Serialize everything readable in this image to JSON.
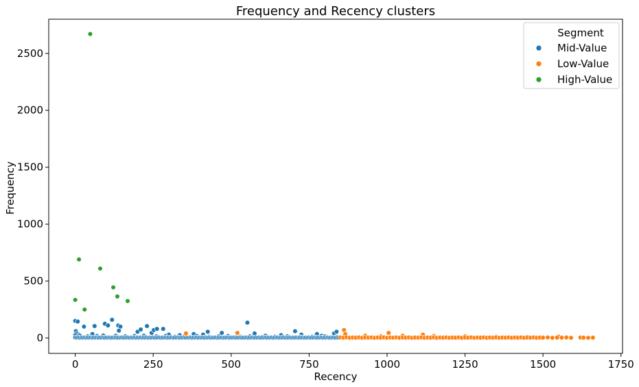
{
  "chart_data": {
    "type": "scatter",
    "title": "Frequency and Recency clusters",
    "xlabel": "Recency",
    "ylabel": "Frequency",
    "xlim": [
      -85,
      1755
    ],
    "ylim": [
      -135,
      2800
    ],
    "xticks": [
      0,
      250,
      500,
      750,
      1000,
      1250,
      1500,
      1750
    ],
    "yticks": [
      0,
      500,
      1000,
      1500,
      2000,
      2500
    ],
    "grid": false,
    "legend": {
      "title": "Segment",
      "position": "top-right"
    },
    "series": [
      {
        "name": "Mid-Value",
        "color": "#1f77b4",
        "points": [
          [
            0,
            150
          ],
          [
            8,
            145
          ],
          [
            2,
            60
          ],
          [
            5,
            40
          ],
          [
            12,
            30
          ],
          [
            28,
            100
          ],
          [
            55,
            35
          ],
          [
            62,
            105
          ],
          [
            95,
            125
          ],
          [
            105,
            110
          ],
          [
            118,
            160
          ],
          [
            138,
            110
          ],
          [
            145,
            100
          ],
          [
            140,
            65
          ],
          [
            200,
            55
          ],
          [
            210,
            75
          ],
          [
            230,
            105
          ],
          [
            245,
            45
          ],
          [
            252,
            70
          ],
          [
            262,
            80
          ],
          [
            282,
            80
          ],
          [
            300,
            30
          ],
          [
            335,
            25
          ],
          [
            380,
            35
          ],
          [
            410,
            30
          ],
          [
            425,
            55
          ],
          [
            470,
            45
          ],
          [
            520,
            25
          ],
          [
            552,
            135
          ],
          [
            575,
            40
          ],
          [
            610,
            20
          ],
          [
            660,
            25
          ],
          [
            705,
            60
          ],
          [
            725,
            30
          ],
          [
            775,
            35
          ],
          [
            790,
            20
          ],
          [
            830,
            40
          ],
          [
            838,
            55
          ],
          [
            0,
            25
          ],
          [
            15,
            20
          ],
          [
            40,
            15
          ],
          [
            70,
            18
          ],
          [
            90,
            22
          ],
          [
            130,
            20
          ],
          [
            160,
            15
          ],
          [
            190,
            18
          ],
          [
            220,
            20
          ],
          [
            260,
            15
          ],
          [
            290,
            18
          ],
          [
            320,
            12
          ],
          [
            350,
            15
          ],
          [
            390,
            18
          ],
          [
            430,
            12
          ],
          [
            460,
            15
          ],
          [
            490,
            18
          ],
          [
            530,
            12
          ],
          [
            560,
            15
          ],
          [
            600,
            10
          ],
          [
            640,
            12
          ],
          [
            680,
            15
          ],
          [
            720,
            10
          ],
          [
            760,
            12
          ],
          [
            800,
            15
          ],
          [
            840,
            10
          ],
          [
            0,
            5
          ],
          [
            5,
            3
          ],
          [
            10,
            6
          ],
          [
            15,
            2
          ],
          [
            20,
            4
          ],
          [
            25,
            3
          ],
          [
            30,
            5
          ],
          [
            35,
            2
          ],
          [
            40,
            4
          ],
          [
            45,
            3
          ],
          [
            50,
            5
          ],
          [
            55,
            2
          ],
          [
            60,
            4
          ],
          [
            65,
            3
          ],
          [
            70,
            5
          ],
          [
            75,
            2
          ],
          [
            80,
            4
          ],
          [
            85,
            3
          ],
          [
            90,
            5
          ],
          [
            95,
            2
          ],
          [
            100,
            4
          ],
          [
            105,
            3
          ],
          [
            110,
            5
          ],
          [
            115,
            2
          ],
          [
            120,
            4
          ],
          [
            125,
            3
          ],
          [
            130,
            5
          ],
          [
            135,
            2
          ],
          [
            140,
            4
          ],
          [
            145,
            3
          ],
          [
            150,
            5
          ],
          [
            155,
            2
          ],
          [
            160,
            4
          ],
          [
            165,
            3
          ],
          [
            170,
            5
          ],
          [
            175,
            2
          ],
          [
            180,
            4
          ],
          [
            185,
            3
          ],
          [
            190,
            5
          ],
          [
            195,
            2
          ],
          [
            200,
            4
          ],
          [
            205,
            3
          ],
          [
            210,
            5
          ],
          [
            215,
            2
          ],
          [
            220,
            4
          ],
          [
            225,
            3
          ],
          [
            230,
            5
          ],
          [
            235,
            2
          ],
          [
            240,
            4
          ],
          [
            245,
            3
          ],
          [
            250,
            5
          ],
          [
            255,
            2
          ],
          [
            260,
            4
          ],
          [
            265,
            3
          ],
          [
            270,
            5
          ],
          [
            275,
            2
          ],
          [
            280,
            4
          ],
          [
            285,
            3
          ],
          [
            290,
            5
          ],
          [
            295,
            2
          ],
          [
            300,
            4
          ],
          [
            305,
            3
          ],
          [
            310,
            5
          ],
          [
            315,
            2
          ],
          [
            320,
            4
          ],
          [
            325,
            3
          ],
          [
            330,
            5
          ],
          [
            335,
            2
          ],
          [
            340,
            4
          ],
          [
            345,
            3
          ],
          [
            350,
            5
          ],
          [
            355,
            2
          ],
          [
            360,
            4
          ],
          [
            365,
            3
          ],
          [
            370,
            5
          ],
          [
            375,
            2
          ],
          [
            380,
            4
          ],
          [
            385,
            3
          ],
          [
            390,
            5
          ],
          [
            395,
            2
          ],
          [
            400,
            4
          ],
          [
            405,
            3
          ],
          [
            410,
            5
          ],
          [
            415,
            2
          ],
          [
            420,
            4
          ],
          [
            425,
            3
          ],
          [
            430,
            5
          ],
          [
            435,
            2
          ],
          [
            440,
            4
          ],
          [
            445,
            3
          ],
          [
            450,
            5
          ],
          [
            455,
            2
          ],
          [
            460,
            4
          ],
          [
            465,
            3
          ],
          [
            470,
            5
          ],
          [
            475,
            2
          ],
          [
            480,
            4
          ],
          [
            485,
            3
          ],
          [
            490,
            5
          ],
          [
            495,
            2
          ],
          [
            500,
            4
          ],
          [
            505,
            3
          ],
          [
            510,
            5
          ],
          [
            515,
            2
          ],
          [
            520,
            4
          ],
          [
            525,
            3
          ],
          [
            530,
            5
          ],
          [
            535,
            2
          ],
          [
            540,
            4
          ],
          [
            545,
            3
          ],
          [
            550,
            5
          ],
          [
            555,
            2
          ],
          [
            560,
            4
          ],
          [
            565,
            3
          ],
          [
            570,
            5
          ],
          [
            575,
            2
          ],
          [
            580,
            4
          ],
          [
            585,
            3
          ],
          [
            590,
            5
          ],
          [
            595,
            2
          ],
          [
            600,
            4
          ],
          [
            605,
            3
          ],
          [
            610,
            5
          ],
          [
            615,
            2
          ],
          [
            620,
            4
          ],
          [
            625,
            3
          ],
          [
            630,
            5
          ],
          [
            635,
            2
          ],
          [
            640,
            4
          ],
          [
            645,
            3
          ],
          [
            650,
            5
          ],
          [
            655,
            2
          ],
          [
            660,
            4
          ],
          [
            665,
            3
          ],
          [
            670,
            5
          ],
          [
            675,
            2
          ],
          [
            680,
            4
          ],
          [
            685,
            3
          ],
          [
            690,
            5
          ],
          [
            695,
            2
          ],
          [
            700,
            4
          ],
          [
            705,
            3
          ],
          [
            710,
            5
          ],
          [
            715,
            2
          ],
          [
            720,
            4
          ],
          [
            725,
            3
          ],
          [
            730,
            5
          ],
          [
            735,
            2
          ],
          [
            740,
            4
          ],
          [
            745,
            3
          ],
          [
            750,
            5
          ],
          [
            755,
            2
          ],
          [
            760,
            4
          ],
          [
            765,
            3
          ],
          [
            770,
            5
          ],
          [
            775,
            2
          ],
          [
            780,
            4
          ],
          [
            785,
            3
          ],
          [
            790,
            5
          ],
          [
            795,
            2
          ],
          [
            800,
            4
          ],
          [
            805,
            3
          ],
          [
            810,
            5
          ],
          [
            815,
            2
          ],
          [
            820,
            4
          ],
          [
            825,
            3
          ],
          [
            830,
            5
          ],
          [
            835,
            2
          ],
          [
            840,
            4
          ],
          [
            845,
            3
          ]
        ]
      },
      {
        "name": "Low-Value",
        "color": "#ff7f0e",
        "points": [
          [
            862,
            70
          ],
          [
            866,
            35
          ],
          [
            1005,
            45
          ],
          [
            1115,
            30
          ],
          [
            520,
            45
          ],
          [
            355,
            40
          ],
          [
            930,
            20
          ],
          [
            980,
            15
          ],
          [
            1050,
            20
          ],
          [
            1150,
            18
          ],
          [
            1250,
            15
          ],
          [
            1350,
            12
          ],
          [
            1450,
            10
          ],
          [
            1550,
            12
          ],
          [
            850,
            5
          ],
          [
            860,
            3
          ],
          [
            870,
            6
          ],
          [
            880,
            2
          ],
          [
            890,
            4
          ],
          [
            900,
            3
          ],
          [
            910,
            5
          ],
          [
            920,
            2
          ],
          [
            930,
            4
          ],
          [
            940,
            3
          ],
          [
            950,
            5
          ],
          [
            960,
            2
          ],
          [
            970,
            4
          ],
          [
            980,
            3
          ],
          [
            990,
            5
          ],
          [
            1000,
            2
          ],
          [
            1010,
            4
          ],
          [
            1020,
            3
          ],
          [
            1030,
            5
          ],
          [
            1040,
            2
          ],
          [
            1050,
            4
          ],
          [
            1060,
            3
          ],
          [
            1070,
            5
          ],
          [
            1080,
            2
          ],
          [
            1090,
            4
          ],
          [
            1100,
            3
          ],
          [
            1110,
            5
          ],
          [
            1120,
            2
          ],
          [
            1130,
            4
          ],
          [
            1140,
            3
          ],
          [
            1150,
            5
          ],
          [
            1160,
            2
          ],
          [
            1170,
            4
          ],
          [
            1180,
            3
          ],
          [
            1190,
            5
          ],
          [
            1200,
            2
          ],
          [
            1210,
            4
          ],
          [
            1220,
            3
          ],
          [
            1230,
            5
          ],
          [
            1240,
            2
          ],
          [
            1250,
            4
          ],
          [
            1260,
            3
          ],
          [
            1270,
            5
          ],
          [
            1280,
            2
          ],
          [
            1290,
            4
          ],
          [
            1300,
            3
          ],
          [
            1310,
            5
          ],
          [
            1320,
            2
          ],
          [
            1330,
            4
          ],
          [
            1340,
            3
          ],
          [
            1350,
            5
          ],
          [
            1360,
            2
          ],
          [
            1370,
            4
          ],
          [
            1380,
            3
          ],
          [
            1390,
            5
          ],
          [
            1400,
            2
          ],
          [
            1410,
            4
          ],
          [
            1420,
            3
          ],
          [
            1430,
            5
          ],
          [
            1440,
            2
          ],
          [
            1450,
            4
          ],
          [
            1460,
            3
          ],
          [
            1470,
            5
          ],
          [
            1480,
            2
          ],
          [
            1490,
            4
          ],
          [
            1500,
            3
          ],
          [
            1515,
            5
          ],
          [
            1530,
            2
          ],
          [
            1545,
            4
          ],
          [
            1560,
            3
          ],
          [
            1575,
            5
          ],
          [
            1590,
            2
          ],
          [
            1620,
            4
          ],
          [
            1630,
            3
          ],
          [
            1645,
            2
          ],
          [
            1660,
            3
          ]
        ]
      },
      {
        "name": "High-Value",
        "color": "#2ca02c",
        "points": [
          [
            48,
            2670
          ],
          [
            12,
            690
          ],
          [
            80,
            610
          ],
          [
            0,
            335
          ],
          [
            30,
            250
          ],
          [
            122,
            445
          ],
          [
            135,
            365
          ],
          [
            168,
            325
          ]
        ]
      }
    ]
  }
}
